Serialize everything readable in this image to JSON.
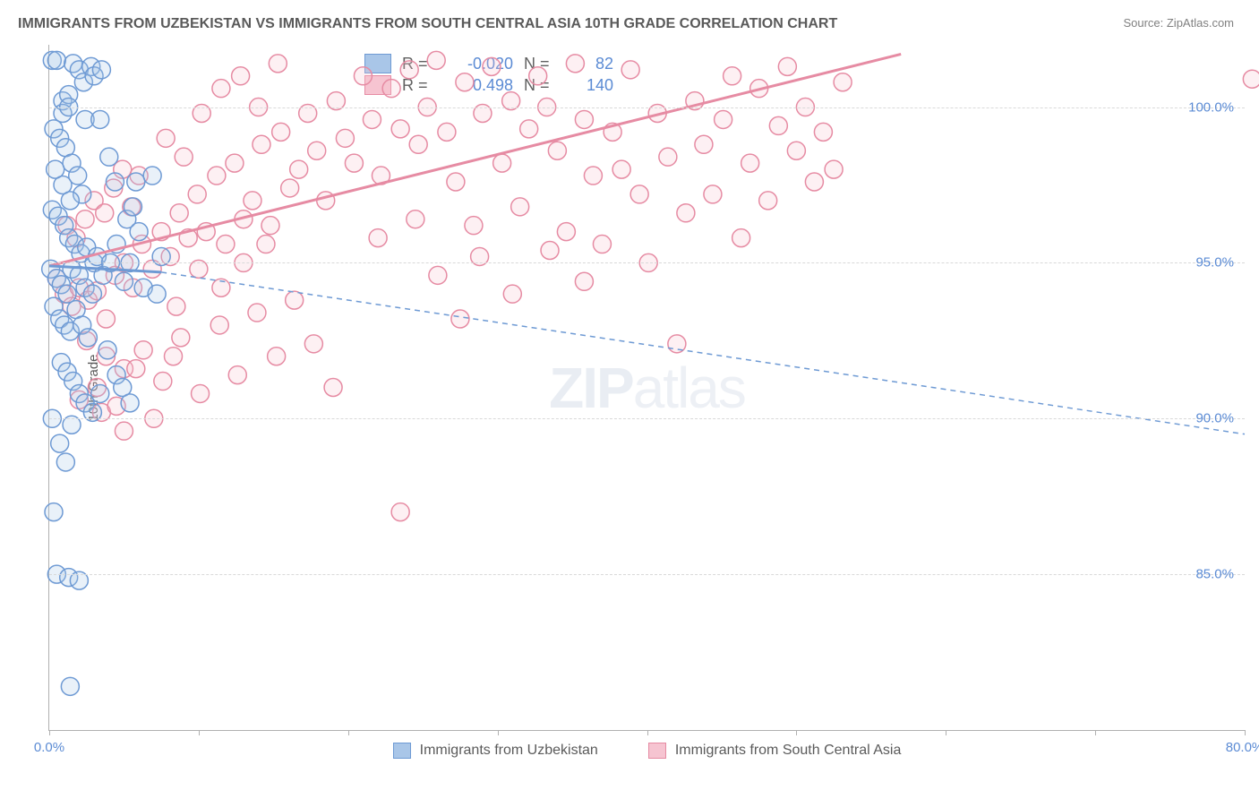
{
  "title": "IMMIGRANTS FROM UZBEKISTAN VS IMMIGRANTS FROM SOUTH CENTRAL ASIA 10TH GRADE CORRELATION CHART",
  "source": "Source: ZipAtlas.com",
  "ylabel": "10th Grade",
  "watermark_a": "ZIP",
  "watermark_b": "atlas",
  "chart": {
    "type": "scatter",
    "xlim": [
      0,
      80
    ],
    "ylim": [
      80,
      102
    ],
    "xtick_positions": [
      0,
      10,
      20,
      30,
      40,
      50,
      60,
      70,
      80
    ],
    "xtick_labels": {
      "0": "0.0%",
      "80": "80.0%"
    },
    "ytick_positions": [
      85,
      90,
      95,
      100
    ],
    "ytick_labels": {
      "85": "85.0%",
      "90": "90.0%",
      "95": "95.0%",
      "100": "100.0%"
    },
    "grid_color": "#d9d9d9",
    "axis_color": "#b0b0b0",
    "background_color": "#ffffff",
    "title_fontsize": 16,
    "label_fontsize": 15,
    "tick_fontsize": 15,
    "tick_color": "#5b8bd4",
    "marker_radius": 10,
    "marker_stroke_width": 1.5,
    "marker_fill_opacity": 0.25,
    "trend_line_width_solid": 3,
    "trend_line_width_dashed": 1.5,
    "trend_dash": "6 5"
  },
  "series": [
    {
      "name": "Immigrants from Uzbekistan",
      "color_stroke": "#6e9ad4",
      "color_fill": "#a9c6e8",
      "R": "-0.020",
      "N": "82",
      "trend": {
        "x1": 0,
        "y1": 94.9,
        "x2": 7.5,
        "y2": 94.7,
        "style": "solid"
      },
      "trend_ext": {
        "x1": 7.5,
        "y1": 94.7,
        "x2": 80,
        "y2": 89.5,
        "style": "dashed"
      },
      "points": [
        [
          0.2,
          101.5
        ],
        [
          0.5,
          101.5
        ],
        [
          0.9,
          100.2
        ],
        [
          1.3,
          100.4
        ],
        [
          1.6,
          101.4
        ],
        [
          2.0,
          101.2
        ],
        [
          2.3,
          100.8
        ],
        [
          2.4,
          99.6
        ],
        [
          0.3,
          99.3
        ],
        [
          0.7,
          99.0
        ],
        [
          1.1,
          98.7
        ],
        [
          1.5,
          98.2
        ],
        [
          1.9,
          97.8
        ],
        [
          2.2,
          97.2
        ],
        [
          0.9,
          97.5
        ],
        [
          1.4,
          97.0
        ],
        [
          0.2,
          96.7
        ],
        [
          0.6,
          96.5
        ],
        [
          1.0,
          96.2
        ],
        [
          1.3,
          95.8
        ],
        [
          1.7,
          95.6
        ],
        [
          2.1,
          95.3
        ],
        [
          2.5,
          95.5
        ],
        [
          3.0,
          95.0
        ],
        [
          0.1,
          94.8
        ],
        [
          0.5,
          94.5
        ],
        [
          0.8,
          94.3
        ],
        [
          1.2,
          94.0
        ],
        [
          1.5,
          94.8
        ],
        [
          2.0,
          94.6
        ],
        [
          2.4,
          94.2
        ],
        [
          2.9,
          94.0
        ],
        [
          0.3,
          93.6
        ],
        [
          0.7,
          93.2
        ],
        [
          1.0,
          93.0
        ],
        [
          1.4,
          92.8
        ],
        [
          1.8,
          93.5
        ],
        [
          2.2,
          93.0
        ],
        [
          2.6,
          92.6
        ],
        [
          3.2,
          95.2
        ],
        [
          3.6,
          94.6
        ],
        [
          4.1,
          95.0
        ],
        [
          4.5,
          95.6
        ],
        [
          5.0,
          94.4
        ],
        [
          5.4,
          95.0
        ],
        [
          5.8,
          97.6
        ],
        [
          6.3,
          94.2
        ],
        [
          6.9,
          97.8
        ],
        [
          7.2,
          94.0
        ],
        [
          7.5,
          95.2
        ],
        [
          3.4,
          99.6
        ],
        [
          4.0,
          98.4
        ],
        [
          4.4,
          97.6
        ],
        [
          0.8,
          91.8
        ],
        [
          1.2,
          91.5
        ],
        [
          1.6,
          91.2
        ],
        [
          2.0,
          90.8
        ],
        [
          2.4,
          90.5
        ],
        [
          2.9,
          90.2
        ],
        [
          3.4,
          90.8
        ],
        [
          3.9,
          92.2
        ],
        [
          4.5,
          91.4
        ],
        [
          4.9,
          91.0
        ],
        [
          5.4,
          90.5
        ],
        [
          0.2,
          90.0
        ],
        [
          0.7,
          89.2
        ],
        [
          1.1,
          88.6
        ],
        [
          1.5,
          89.8
        ],
        [
          0.3,
          87.0
        ],
        [
          0.5,
          85.0
        ],
        [
          1.3,
          84.9
        ],
        [
          2.0,
          84.8
        ],
        [
          1.4,
          81.4
        ],
        [
          0.4,
          98.0
        ],
        [
          0.9,
          99.8
        ],
        [
          1.3,
          100.0
        ],
        [
          2.8,
          101.3
        ],
        [
          3.0,
          101.0
        ],
        [
          3.5,
          101.2
        ],
        [
          5.2,
          96.4
        ],
        [
          5.6,
          96.8
        ],
        [
          6.0,
          96.0
        ]
      ]
    },
    {
      "name": "Immigrants from South Central Asia",
      "color_stroke": "#e68ba3",
      "color_fill": "#f6c4d1",
      "R": "0.498",
      "N": "140",
      "trend": {
        "x1": 0,
        "y1": 94.9,
        "x2": 57,
        "y2": 101.7,
        "style": "solid"
      },
      "points": [
        [
          0.5,
          94.5
        ],
        [
          1.0,
          94.0
        ],
        [
          1.5,
          93.6
        ],
        [
          2.0,
          94.2
        ],
        [
          2.6,
          93.8
        ],
        [
          3.2,
          94.1
        ],
        [
          3.8,
          93.2
        ],
        [
          4.4,
          94.6
        ],
        [
          5.0,
          95.0
        ],
        [
          5.6,
          94.2
        ],
        [
          6.2,
          95.6
        ],
        [
          6.9,
          94.8
        ],
        [
          7.5,
          96.0
        ],
        [
          8.1,
          95.2
        ],
        [
          8.7,
          96.6
        ],
        [
          9.3,
          95.8
        ],
        [
          9.9,
          97.2
        ],
        [
          10.5,
          96.0
        ],
        [
          11.2,
          97.8
        ],
        [
          11.8,
          95.6
        ],
        [
          12.4,
          98.2
        ],
        [
          13.0,
          96.4
        ],
        [
          13.6,
          97.0
        ],
        [
          14.2,
          98.8
        ],
        [
          14.8,
          96.2
        ],
        [
          15.5,
          99.2
        ],
        [
          16.1,
          97.4
        ],
        [
          16.7,
          98.0
        ],
        [
          17.3,
          99.8
        ],
        [
          17.9,
          98.6
        ],
        [
          18.5,
          97.0
        ],
        [
          19.2,
          100.2
        ],
        [
          19.8,
          99.0
        ],
        [
          20.4,
          98.2
        ],
        [
          21.0,
          101.0
        ],
        [
          21.6,
          99.6
        ],
        [
          22.2,
          97.8
        ],
        [
          22.9,
          100.6
        ],
        [
          23.5,
          99.3
        ],
        [
          24.1,
          101.2
        ],
        [
          24.7,
          98.8
        ],
        [
          25.3,
          100.0
        ],
        [
          25.9,
          101.5
        ],
        [
          26.6,
          99.2
        ],
        [
          27.2,
          97.6
        ],
        [
          27.8,
          100.8
        ],
        [
          28.4,
          96.2
        ],
        [
          29.0,
          99.8
        ],
        [
          29.6,
          101.3
        ],
        [
          30.3,
          98.2
        ],
        [
          30.9,
          100.2
        ],
        [
          31.5,
          96.8
        ],
        [
          32.1,
          99.3
        ],
        [
          32.7,
          101.0
        ],
        [
          33.3,
          100.0
        ],
        [
          34.0,
          98.6
        ],
        [
          34.6,
          96.0
        ],
        [
          35.2,
          101.4
        ],
        [
          35.8,
          99.6
        ],
        [
          36.4,
          97.8
        ],
        [
          37.0,
          95.6
        ],
        [
          37.7,
          99.2
        ],
        [
          38.3,
          98.0
        ],
        [
          38.9,
          101.2
        ],
        [
          39.5,
          97.2
        ],
        [
          40.1,
          95.0
        ],
        [
          40.7,
          99.8
        ],
        [
          41.4,
          98.4
        ],
        [
          42.0,
          92.4
        ],
        [
          42.6,
          96.6
        ],
        [
          43.2,
          100.2
        ],
        [
          43.8,
          98.8
        ],
        [
          44.4,
          97.2
        ],
        [
          45.1,
          99.6
        ],
        [
          45.7,
          101.0
        ],
        [
          46.3,
          95.8
        ],
        [
          46.9,
          98.2
        ],
        [
          47.5,
          100.6
        ],
        [
          48.1,
          97.0
        ],
        [
          48.8,
          99.4
        ],
        [
          49.4,
          101.3
        ],
        [
          50.0,
          98.6
        ],
        [
          50.6,
          100.0
        ],
        [
          51.2,
          97.6
        ],
        [
          51.8,
          99.2
        ],
        [
          52.5,
          98.0
        ],
        [
          53.1,
          100.8
        ],
        [
          80.5,
          100.9
        ],
        [
          2.5,
          92.5
        ],
        [
          3.8,
          92.0
        ],
        [
          5.0,
          91.6
        ],
        [
          6.3,
          92.2
        ],
        [
          7.6,
          91.2
        ],
        [
          8.8,
          92.6
        ],
        [
          10.1,
          90.8
        ],
        [
          11.4,
          93.0
        ],
        [
          12.6,
          91.4
        ],
        [
          13.9,
          93.4
        ],
        [
          15.2,
          92.0
        ],
        [
          16.4,
          93.8
        ],
        [
          17.7,
          92.4
        ],
        [
          19.0,
          91.0
        ],
        [
          6.0,
          97.8
        ],
        [
          7.8,
          99.0
        ],
        [
          9.0,
          98.4
        ],
        [
          10.2,
          99.8
        ],
        [
          11.5,
          100.6
        ],
        [
          12.8,
          101.0
        ],
        [
          14.0,
          100.0
        ],
        [
          15.3,
          101.4
        ],
        [
          3.5,
          90.2
        ],
        [
          5.0,
          89.6
        ],
        [
          8.5,
          93.6
        ],
        [
          10.0,
          94.8
        ],
        [
          11.5,
          94.2
        ],
        [
          13.0,
          95.0
        ],
        [
          14.5,
          95.6
        ],
        [
          26.0,
          94.6
        ],
        [
          27.5,
          93.2
        ],
        [
          23.5,
          87.0
        ],
        [
          1.2,
          96.2
        ],
        [
          1.8,
          95.8
        ],
        [
          2.4,
          96.4
        ],
        [
          3.0,
          97.0
        ],
        [
          3.7,
          96.6
        ],
        [
          4.3,
          97.4
        ],
        [
          4.9,
          98.0
        ],
        [
          5.5,
          96.8
        ],
        [
          2.0,
          90.6
        ],
        [
          3.2,
          91.0
        ],
        [
          4.5,
          90.4
        ],
        [
          5.8,
          91.6
        ],
        [
          7.0,
          90.0
        ],
        [
          8.3,
          92.0
        ],
        [
          22.0,
          95.8
        ],
        [
          24.5,
          96.4
        ],
        [
          28.8,
          95.2
        ],
        [
          31.0,
          94.0
        ],
        [
          33.5,
          95.4
        ],
        [
          35.8,
          94.4
        ]
      ]
    }
  ],
  "legend_top": {
    "R_label": "R =",
    "N_label": "N ="
  },
  "legend_bottom_labels": [
    "Immigrants from Uzbekistan",
    "Immigrants from South Central Asia"
  ]
}
